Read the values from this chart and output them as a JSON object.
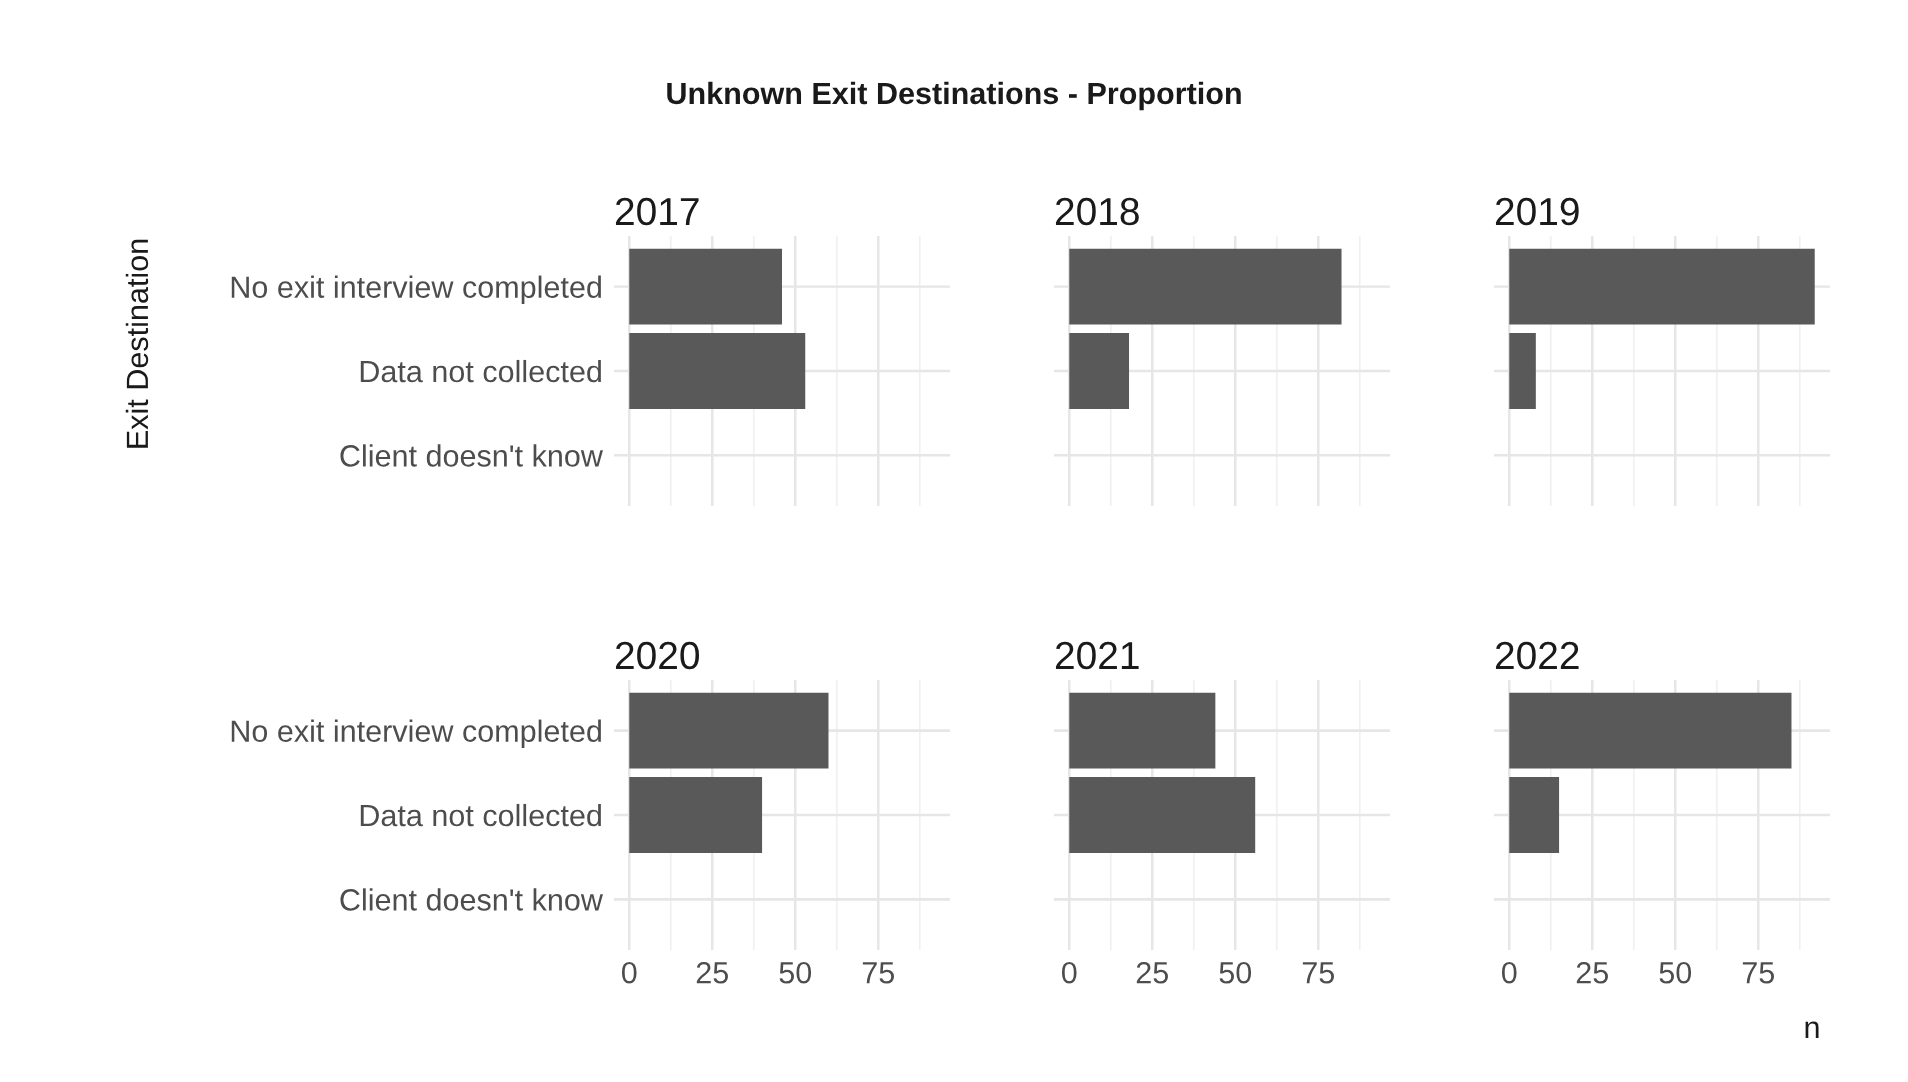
{
  "chart_data": [
    {
      "type": "bar",
      "orientation": "horizontal",
      "title": "2017",
      "ylabel": "Exit Destination",
      "annotations": [
        "Unknown Exit Destinations - Proportion"
      ],
      "categories": [
        "No exit interview completed",
        "Data not collected",
        "Client doesn't know"
      ],
      "values": [
        46,
        53,
        0
      ],
      "color": "#595959",
      "xlim": [
        -4.6,
        96.6
      ],
      "xticks": [
        0,
        25,
        50,
        75
      ],
      "grid": true,
      "tick_labels": "y"
    },
    {
      "type": "bar",
      "orientation": "horizontal",
      "title": "2018",
      "categories": [
        null,
        null,
        null
      ],
      "values": [
        82,
        18,
        0
      ],
      "color": "#595959",
      "xlim": [
        -4.6,
        96.6
      ],
      "xticks": [
        0,
        25,
        50,
        75
      ],
      "grid": true,
      "tick_labels": false
    },
    {
      "type": "bar",
      "orientation": "horizontal",
      "title": "2019",
      "categories": [
        null,
        null,
        null
      ],
      "values": [
        92,
        8,
        0
      ],
      "color": "#595959",
      "xlim": [
        -4.6,
        96.6
      ],
      "xticks": [
        0,
        25,
        50,
        75
      ],
      "grid": true,
      "tick_labels": false
    },
    {
      "type": "bar",
      "orientation": "horizontal",
      "title": "2020",
      "categories": [
        "No exit interview completed",
        "Data not collected",
        "Client doesn't know"
      ],
      "values": [
        60,
        40,
        0
      ],
      "color": "#595959",
      "xlim": [
        -4.6,
        96.6
      ],
      "xticks": [
        0,
        25,
        50,
        75
      ],
      "grid": true
    },
    {
      "type": "bar",
      "orientation": "horizontal",
      "title": "2021",
      "categories": [
        null,
        null,
        null
      ],
      "values": [
        44,
        56,
        0
      ],
      "color": "#595959",
      "xlim": [
        -4.6,
        96.6
      ],
      "xticks": [
        0,
        25,
        50,
        75
      ],
      "grid": true,
      "tick_labels": "x"
    },
    {
      "type": "bar",
      "orientation": "horizontal",
      "title": "2022",
      "xlabel": "n",
      "categories": [
        null,
        null,
        null
      ],
      "values": [
        85,
        15,
        0
      ],
      "color": "#595959",
      "xlim": [
        -4.6,
        96.6
      ],
      "xticks": [
        0,
        25,
        50,
        75
      ],
      "grid": true,
      "tick_labels": "x"
    }
  ]
}
